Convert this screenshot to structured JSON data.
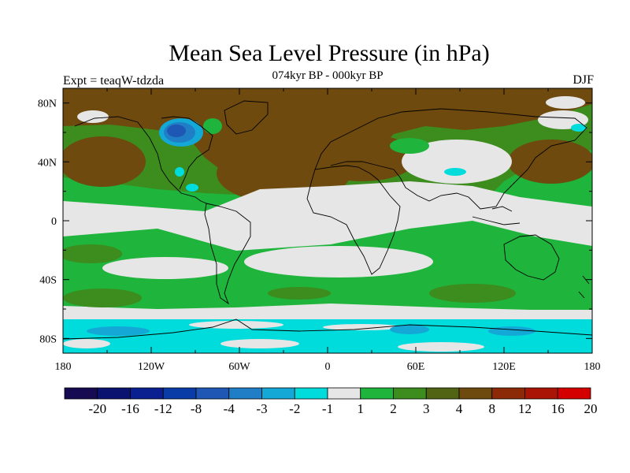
{
  "chart_data": {
    "type": "heatmap",
    "title": "Mean Sea Level Pressure (in hPa)",
    "subtitle": "074kyr BP - 000kyr BP",
    "left_label": "Expt = teaqW-tdzda",
    "right_label": "DJF",
    "x_ticks": [
      "180",
      "120W",
      "60W",
      "0",
      "60E",
      "120E",
      "180"
    ],
    "y_ticks": [
      "80N",
      "40N",
      "0",
      "40S",
      "80S"
    ],
    "x_range": [
      -180,
      180
    ],
    "y_range": [
      -90,
      90
    ],
    "colorbar": {
      "labels": [
        "-20",
        "-16",
        "-12",
        "-8",
        "-4",
        "-3",
        "-2",
        "-1",
        "1",
        "2",
        "3",
        "4",
        "8",
        "12",
        "16",
        "20"
      ],
      "colors": [
        "#160a52",
        "#0a1470",
        "#0a2090",
        "#0a3ca8",
        "#1e58b4",
        "#1f7ec6",
        "#14a8d6",
        "#00dcdc",
        "#e6e6e6",
        "#1fb43c",
        "#3c8c1e",
        "#506414",
        "#6e4a0e",
        "#8c2a08",
        "#aa1404",
        "#d40000"
      ]
    }
  }
}
